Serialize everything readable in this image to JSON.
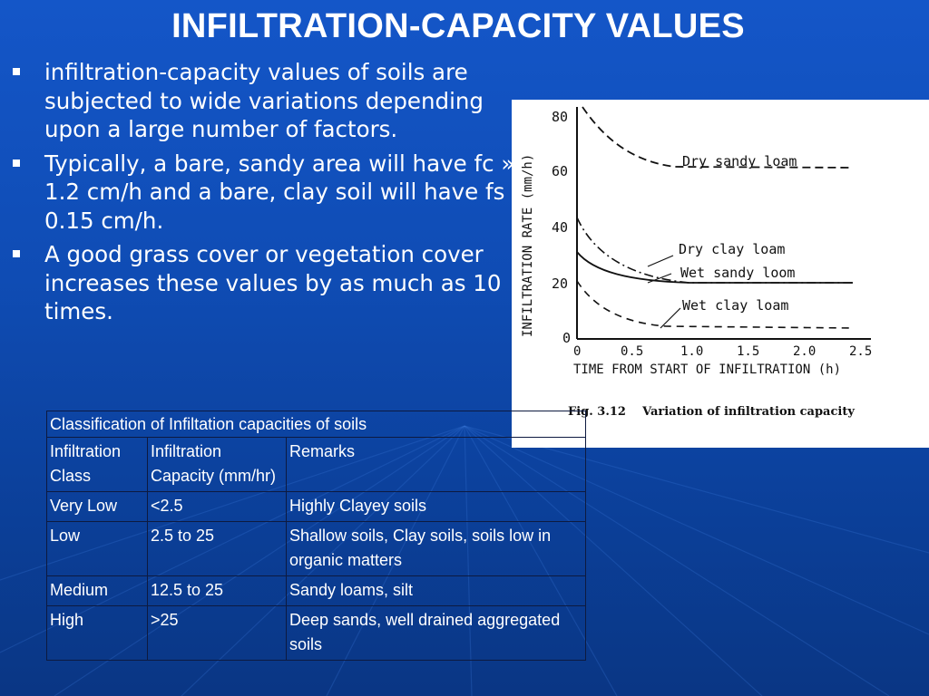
{
  "title": "INFILTRATION-CAPACITY VALUES",
  "bullets": [
    "infiltration-capacity values of soils are subjected to wide variations depending upon a large number of factors.",
    "Typically, a bare, sandy area will have fc » 1.2 cm/h and a bare, clay soil will have fs » 0.15 cm/h.",
    "A good grass cover or vegetation cover increases these values by as much as 10 times."
  ],
  "figure": {
    "ylabel": "INFILTRATION RATE (mm/h)",
    "xlabel": "TIME FROM START OF INFILTRATION (h)",
    "yticks": [
      "80",
      "60",
      "40",
      "20",
      "0"
    ],
    "xticks": [
      "0",
      "0.5",
      "1.0",
      "1.5",
      "2.0",
      "2.5"
    ],
    "curve_labels": [
      "Dry sandy loam",
      "Dry clay loam",
      "Wet sandy loom",
      "Wet clay loam"
    ],
    "caption": "Fig. 3.12    Variation of infiltration capacity"
  },
  "table": {
    "caption": "Classification of Infiltation capacities of soils",
    "headers": [
      "Infiltration Class",
      "Infiltration Capacity (mm/hr)",
      "Remarks"
    ],
    "rows": [
      [
        "Very Low",
        "<2.5",
        "Highly Clayey soils"
      ],
      [
        "Low",
        "2.5 to 25",
        "Shallow soils, Clay soils, soils low in organic matters"
      ],
      [
        "Medium",
        "12.5 to 25",
        "Sandy loams, silt"
      ],
      [
        "High",
        ">25",
        "Deep sands, well drained aggregated soils"
      ]
    ]
  }
}
